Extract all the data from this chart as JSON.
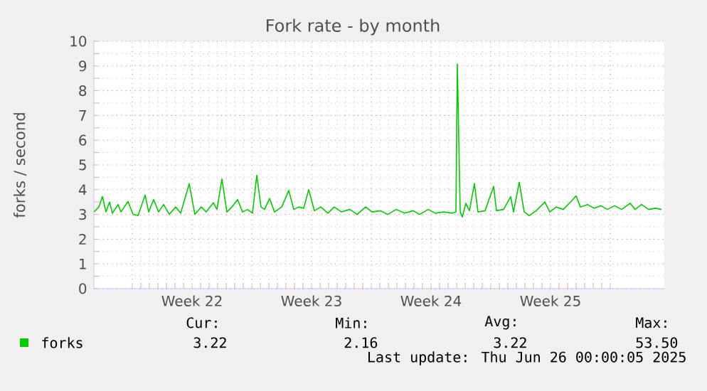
{
  "chart_data": {
    "type": "line",
    "title": "Fork rate - by month",
    "ylabel": "forks / second",
    "xlim": [
      "2025-05-23T18:00",
      "2025-06-26T04:00"
    ],
    "ylim": [
      0,
      10
    ],
    "yticks": [
      0,
      1,
      2,
      3,
      4,
      5,
      6,
      7,
      8,
      9,
      10
    ],
    "xticks": [
      {
        "value": "2025-05-26",
        "label": null
      },
      {
        "value": "2025-05-29T12:00",
        "label": "Week 22"
      },
      {
        "value": "2025-06-02",
        "label": null
      },
      {
        "value": "2025-06-05T12:00",
        "label": "Week 23"
      },
      {
        "value": "2025-06-09",
        "label": null
      },
      {
        "value": "2025-06-12T12:00",
        "label": "Week 24"
      },
      {
        "value": "2025-06-16",
        "label": null
      },
      {
        "value": "2025-06-19T12:00",
        "label": "Week 25"
      },
      {
        "value": "2025-06-23",
        "label": null
      }
    ],
    "grid": true,
    "legend": "bottom left",
    "marker": "none",
    "line_style": "solid",
    "series": [
      {
        "name": "forks",
        "color": "#00cc00",
        "x": [
          "2025-05-23T18:00",
          "2025-05-24T01:00",
          "2025-05-24T06:00",
          "2025-05-24T11:00",
          "2025-05-24T16:00",
          "2025-05-24T20:00",
          "2025-05-25T04:00",
          "2025-05-25T08:00",
          "2025-05-25T18:00",
          "2025-05-26T01:00",
          "2025-05-26T08:00",
          "2025-05-26T18:00",
          "2025-05-26T23:00",
          "2025-05-27T06:00",
          "2025-05-27T13:00",
          "2025-05-27T20:00",
          "2025-05-28T04:00",
          "2025-05-28T13:00",
          "2025-05-28T20:00",
          "2025-05-29T08:00",
          "2025-05-29T16:00",
          "2025-05-30T01:00",
          "2025-05-30T08:00",
          "2025-05-30T18:00",
          "2025-05-30T23:00",
          "2025-05-31T06:00",
          "2025-05-31T13:00",
          "2025-05-31T20:00",
          "2025-06-01T04:00",
          "2025-06-01T11:00",
          "2025-06-01T18:00",
          "2025-06-02T01:00",
          "2025-06-02T07:00",
          "2025-06-02T13:00",
          "2025-06-02T18:00",
          "2025-06-03T01:00",
          "2025-06-03T08:00",
          "2025-06-03T18:00",
          "2025-06-04T04:00",
          "2025-06-04T11:00",
          "2025-06-04T18:00",
          "2025-06-05T01:00",
          "2025-06-05T08:00",
          "2025-06-05T16:00",
          "2025-06-06T01:00",
          "2025-06-06T11:00",
          "2025-06-06T20:00",
          "2025-06-07T06:00",
          "2025-06-07T18:00",
          "2025-06-08T04:00",
          "2025-06-08T16:00",
          "2025-06-09T01:00",
          "2025-06-09T13:00",
          "2025-06-09T23:00",
          "2025-06-10T11:00",
          "2025-06-10T23:00",
          "2025-06-11T11:00",
          "2025-06-11T20:00",
          "2025-06-12T08:00",
          "2025-06-12T18:00",
          "2025-06-13T06:00",
          "2025-06-13T18:00",
          "2025-06-13T23:00",
          "2025-06-14T01:00",
          "2025-06-14T05:00",
          "2025-06-14T08:00",
          "2025-06-14T13:00",
          "2025-06-14T18:00",
          "2025-06-15T01:00",
          "2025-06-15T06:00",
          "2025-06-15T16:00",
          "2025-06-16T04:00",
          "2025-06-16T08:00",
          "2025-06-16T18:00",
          "2025-06-17T04:00",
          "2025-06-17T08:00",
          "2025-06-17T16:00",
          "2025-06-17T23:00",
          "2025-06-18T06:00",
          "2025-06-18T16:00",
          "2025-06-19T04:00",
          "2025-06-19T11:00",
          "2025-06-19T20:00",
          "2025-06-20T06:00",
          "2025-06-20T16:00",
          "2025-06-21T00:00",
          "2025-06-21T06:00",
          "2025-06-21T16:00",
          "2025-06-22T01:00",
          "2025-06-22T11:00",
          "2025-06-22T20:00",
          "2025-06-23T06:00",
          "2025-06-23T16:00",
          "2025-06-24T04:00",
          "2025-06-24T11:00",
          "2025-06-24T20:00",
          "2025-06-25T06:00",
          "2025-06-25T16:00",
          "2025-06-26T00:00"
        ],
        "values": [
          3.1,
          3.3,
          3.72,
          3.1,
          3.5,
          3.05,
          3.4,
          3.1,
          3.52,
          3.0,
          2.95,
          3.78,
          3.1,
          3.6,
          3.1,
          3.4,
          3.0,
          3.3,
          3.05,
          4.24,
          3.0,
          3.3,
          3.1,
          3.47,
          3.2,
          4.43,
          3.1,
          3.3,
          3.6,
          3.1,
          3.2,
          3.05,
          4.58,
          3.3,
          3.2,
          3.64,
          3.1,
          3.3,
          3.97,
          3.2,
          3.3,
          3.25,
          4.0,
          3.15,
          3.3,
          3.05,
          3.3,
          3.1,
          3.2,
          3.0,
          3.3,
          3.1,
          3.15,
          3.0,
          3.2,
          3.05,
          3.15,
          3.0,
          3.2,
          3.05,
          3.1,
          3.05,
          3.1,
          9.08,
          3.1,
          2.9,
          3.45,
          3.15,
          4.25,
          3.1,
          3.15,
          4.13,
          3.15,
          3.2,
          3.72,
          3.1,
          4.3,
          3.1,
          2.95,
          3.15,
          3.5,
          3.1,
          3.3,
          3.2,
          3.5,
          3.75,
          3.3,
          3.4,
          3.25,
          3.35,
          3.2,
          3.35,
          3.2,
          3.45,
          3.2,
          3.4,
          3.2,
          3.25,
          3.2
        ]
      }
    ],
    "annotations": [
      "Cur:",
      "Min:",
      "Avg:",
      "Max:",
      "3.22",
      "2.16",
      "3.22",
      "53.50",
      "Last update: Thu Jun 26 00:00:05 2025"
    ]
  }
}
